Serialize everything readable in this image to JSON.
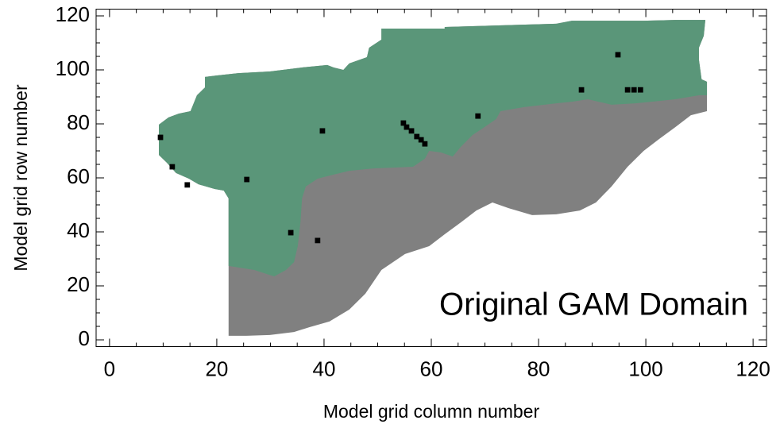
{
  "chart_data": {
    "type": "region",
    "x_label": "Model grid column number",
    "y_label": "Model grid row number",
    "annotation": "Original GAM Domain",
    "xlim": [
      -2.5,
      122.5
    ],
    "ylim": [
      -2.5,
      122.5
    ],
    "xticks": [
      0,
      20,
      40,
      60,
      80,
      100,
      120
    ],
    "yticks": [
      0,
      20,
      40,
      60,
      80,
      100,
      120
    ],
    "xminorticks": [
      5,
      10,
      15,
      25,
      30,
      35,
      45,
      50,
      55,
      65,
      70,
      75,
      85,
      90,
      95,
      105,
      110,
      115
    ],
    "yminorticks": [
      5,
      10,
      15,
      25,
      30,
      35,
      45,
      50,
      55,
      65,
      70,
      75,
      85,
      90,
      95,
      105,
      110,
      115
    ],
    "regions": [
      {
        "color": "#808080",
        "x": [
          9.2,
          11,
          12.9,
          15.1,
          16.3,
          17.8,
          17.8,
          19.9,
          24,
          29.9,
          35.9,
          40.6,
          41.8,
          43.6,
          44.7,
          48,
          48.4,
          50.7,
          50.7,
          62.5,
          62.5,
          83.3,
          86.2,
          99.6,
          105.5,
          111.1,
          110.8,
          109.9,
          109.9,
          110.4,
          111.4,
          111.4,
          108.4,
          105.5,
          102.5,
          99.6,
          96.6,
          93.6,
          90.7,
          87.7,
          83.3,
          78.8,
          74.4,
          71.4,
          68.4,
          65.5,
          62.5,
          59.6,
          55.1,
          50.7,
          47.7,
          44.7,
          41,
          37.3,
          34.4,
          29.9,
          25.5,
          22.2,
          22.2,
          22.2,
          21.3,
          19.6,
          16.6,
          14.8,
          12.4,
          10.7,
          9.2
        ],
        "y": [
          79.7,
          82.4,
          83.8,
          84.7,
          90.6,
          93.5,
          97.4,
          97.9,
          98.8,
          99.4,
          100.9,
          101.8,
          100.9,
          100,
          102.4,
          104.7,
          108.2,
          111.2,
          115.3,
          115.3,
          115.9,
          117.1,
          118.2,
          118.2,
          118.5,
          118.5,
          112.6,
          108.2,
          103.8,
          96.5,
          95.6,
          84.7,
          83.2,
          78.8,
          74.4,
          70,
          64.1,
          56.8,
          50.9,
          47.9,
          46.5,
          46.2,
          48.8,
          50.9,
          47.9,
          43.5,
          39.1,
          34.7,
          31.8,
          25.9,
          17.1,
          11.2,
          6.8,
          4.7,
          2.9,
          1.8,
          1.5,
          1.5,
          24.4,
          52.4,
          55.3,
          55.9,
          57.6,
          59.7,
          61.8,
          65.6,
          68.5
        ]
      },
      {
        "color": "#5a9679",
        "x": [
          22.2,
          22.2,
          21.3,
          19.6,
          16.6,
          14.8,
          12.4,
          10.7,
          9.2,
          9.2,
          11,
          12.9,
          15.1,
          16.3,
          17.8,
          17.8,
          19.9,
          24,
          29.9,
          35.9,
          40.6,
          41.8,
          43.6,
          44.7,
          48,
          48.4,
          50.7,
          50.7,
          62.5,
          62.5,
          83.3,
          86.2,
          99.6,
          105.5,
          111.1,
          110.8,
          109.9,
          109.9,
          110.4,
          111.4,
          111.4,
          109.9,
          105.5,
          98.1,
          93.6,
          89.2,
          86.2,
          83.3,
          77.3,
          72.9,
          72.1,
          69.9,
          67.7,
          65.5,
          64,
          61.8,
          59.6,
          58.8,
          56.6,
          49.2,
          44.7,
          41.8,
          38.8,
          36.6,
          35.9,
          35.6,
          35.1,
          34.4,
          32.9,
          30.7,
          27
        ],
        "y": [
          27.4,
          52.4,
          55.3,
          55.9,
          57.6,
          59.7,
          61.8,
          65.6,
          68.5,
          79.7,
          82.4,
          83.8,
          84.7,
          90.6,
          93.5,
          97.4,
          97.9,
          98.8,
          99.4,
          100.9,
          101.8,
          100.9,
          100,
          102.4,
          104.7,
          108.2,
          111.2,
          115.3,
          115.3,
          115.9,
          117.1,
          118.2,
          118.2,
          118.5,
          118.5,
          112.6,
          108.2,
          103.8,
          96.5,
          95.6,
          90.6,
          90.6,
          89.1,
          87.6,
          87.1,
          89.1,
          88.2,
          87.6,
          86.2,
          84.7,
          81.8,
          78.8,
          75.9,
          71.5,
          67.9,
          69.4,
          70,
          67.1,
          64.1,
          63.5,
          62.6,
          61.2,
          59.7,
          56.8,
          52.4,
          43.5,
          34.7,
          28.8,
          25.9,
          23.5,
          25.9
        ]
      }
    ],
    "cells": {
      "color": "#000000",
      "x": [
        9.5,
        11.7,
        14.5,
        25.6,
        33.8,
        38.8,
        39.7,
        54.8,
        55.4,
        56.3,
        57.3,
        58.1,
        58.8,
        68.7,
        88,
        94.8,
        96.6,
        97.8,
        99
      ],
      "y": [
        75,
        64.1,
        57.4,
        59.4,
        39.7,
        36.8,
        77.4,
        80.3,
        78.8,
        77.4,
        75.3,
        74.1,
        72.6,
        82.9,
        92.6,
        105.6,
        92.6,
        92.6,
        92.6
      ]
    }
  }
}
